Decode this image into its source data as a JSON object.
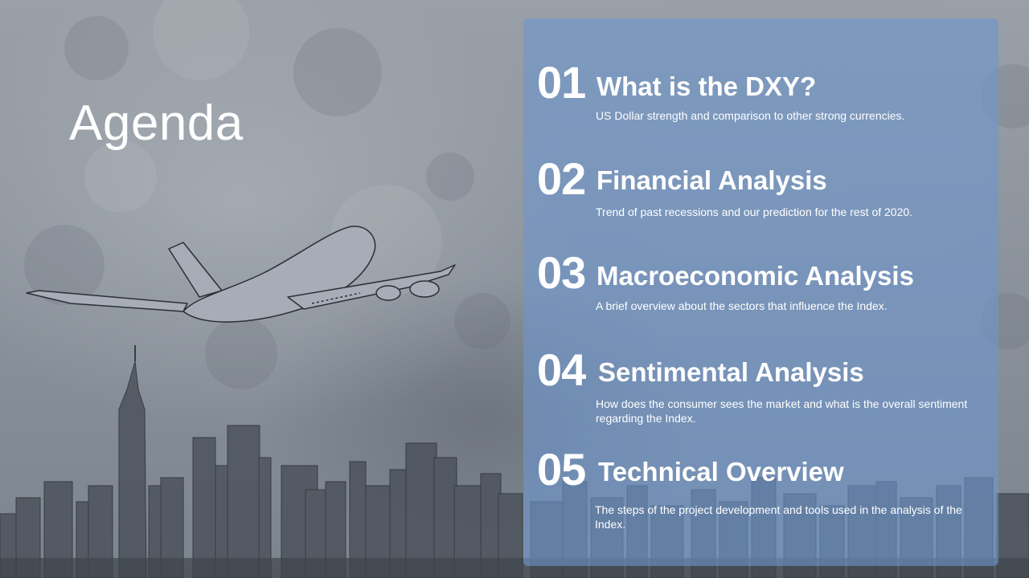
{
  "slide": {
    "title": "Agenda",
    "items": [
      {
        "number": "01",
        "heading": "What is the DXY?",
        "description": "US Dollar strength and comparison to other strong currencies."
      },
      {
        "number": "02",
        "heading": "Financial Analysis",
        "description": "Trend of past recessions and our prediction for the rest of 2020."
      },
      {
        "number": "03",
        "heading": "Macroeconomic Analysis",
        "description": "A brief overview about the sectors that influence the Index."
      },
      {
        "number": "04",
        "heading": "Sentimental Analysis",
        "description": "How does the consumer sees the market and what is the overall sentiment regarding the Index."
      },
      {
        "number": "05",
        "heading": "Technical Overview",
        "description": "The steps of the project development and tools used in the analysis of the Index."
      }
    ]
  },
  "colors": {
    "panel": "#6E96CD",
    "text": "#FFFFFF",
    "background": "#8C939C",
    "sketch": "#2B2F36"
  }
}
